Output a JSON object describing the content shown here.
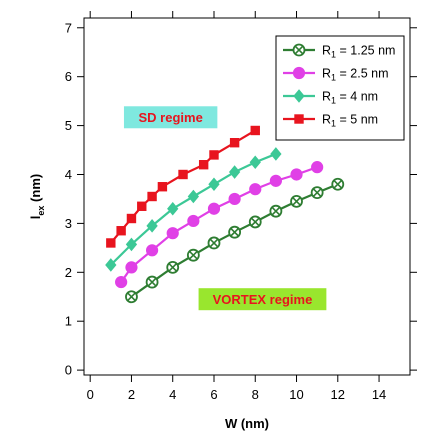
{
  "chart_data": {
    "type": "line",
    "xlabel": "W (nm)",
    "ylabel": {
      "main": "l",
      "sub": "ex",
      "unit": " (nm)"
    },
    "xlim": [
      -0.3,
      15.5
    ],
    "ylim": [
      -0.1,
      7.2
    ],
    "xticks": [
      0,
      2,
      4,
      6,
      8,
      10,
      12,
      14
    ],
    "yticks": [
      0,
      1,
      2,
      3,
      4,
      5,
      6,
      7
    ],
    "grid": false,
    "legend_position": "top-right",
    "series": [
      {
        "name_main": "R",
        "name_sub": "1",
        "name_rest": " = 1.25 nm",
        "color": "#2e7d32",
        "marker": "circle-x",
        "x": [
          2,
          3,
          4,
          5,
          6,
          7,
          8,
          9,
          10,
          11,
          12
        ],
        "y": [
          1.5,
          1.8,
          2.1,
          2.35,
          2.6,
          2.82,
          3.03,
          3.25,
          3.45,
          3.63,
          3.8
        ]
      },
      {
        "name_main": "R",
        "name_sub": "1",
        "name_rest": " = 2.5 nm",
        "color": "#e040e6",
        "marker": "circle",
        "x": [
          1.5,
          2,
          3,
          4,
          5,
          6,
          7,
          8,
          9,
          10,
          11
        ],
        "y": [
          1.8,
          2.1,
          2.45,
          2.8,
          3.05,
          3.3,
          3.5,
          3.7,
          3.87,
          4.0,
          4.15
        ]
      },
      {
        "name_main": "R",
        "name_sub": "1",
        "name_rest": " = 4 nm",
        "color": "#3cc896",
        "marker": "diamond",
        "x": [
          1,
          2,
          3,
          4,
          5,
          6,
          7,
          8,
          9
        ],
        "y": [
          2.15,
          2.57,
          2.95,
          3.3,
          3.55,
          3.8,
          4.05,
          4.25,
          4.42
        ]
      },
      {
        "name_main": "R",
        "name_sub": "1",
        "name_rest": " = 5 nm",
        "color": "#e8141e",
        "marker": "square",
        "x": [
          1,
          1.5,
          2,
          2.5,
          3,
          3.5,
          4.5,
          5.5,
          6,
          7,
          8
        ],
        "y": [
          2.6,
          2.85,
          3.1,
          3.35,
          3.55,
          3.75,
          4.0,
          4.2,
          4.4,
          4.65,
          4.9
        ]
      }
    ],
    "annotations": [
      {
        "text": "SD regime",
        "x": 3.9,
        "y": 5.17,
        "bg": "#7fe8df",
        "color": "#e8141e"
      },
      {
        "text": "VORTEX regime",
        "x": 8.35,
        "y": 1.45,
        "bg": "#99e62e",
        "color": "#e8141e"
      }
    ]
  }
}
